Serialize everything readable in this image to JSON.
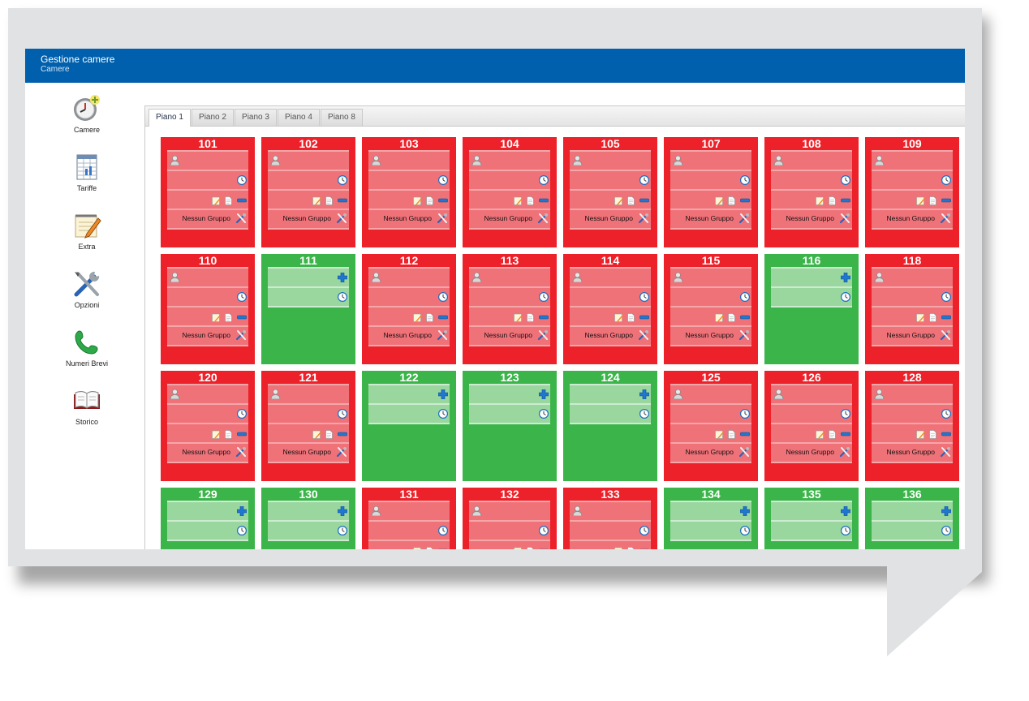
{
  "header": {
    "title": "Gestione camere",
    "subtitle": "Camere"
  },
  "sidebar": {
    "items": [
      {
        "label": "Camere",
        "icon": "clock-add-icon"
      },
      {
        "label": "Tariffe",
        "icon": "spreadsheet-icon"
      },
      {
        "label": "Extra",
        "icon": "notepad-pencil-icon"
      },
      {
        "label": "Opzioni",
        "icon": "tools-icon"
      },
      {
        "label": "Numeri Brevi",
        "icon": "phone-icon"
      },
      {
        "label": "Storico",
        "icon": "book-icon"
      }
    ]
  },
  "tabs": [
    {
      "label": "Piano 1",
      "active": true
    },
    {
      "label": "Piano 2",
      "active": false
    },
    {
      "label": "Piano 3",
      "active": false
    },
    {
      "label": "Piano 4",
      "active": false
    },
    {
      "label": "Piano 8",
      "active": false
    }
  ],
  "colors": {
    "occupied": "#ec2129",
    "free": "#3bb54a",
    "header": "#0060ad"
  },
  "group_label": "Nessun Gruppo",
  "rooms": [
    {
      "number": "101",
      "status": "occupied"
    },
    {
      "number": "102",
      "status": "occupied"
    },
    {
      "number": "103",
      "status": "occupied"
    },
    {
      "number": "104",
      "status": "occupied"
    },
    {
      "number": "105",
      "status": "occupied"
    },
    {
      "number": "107",
      "status": "occupied"
    },
    {
      "number": "108",
      "status": "occupied"
    },
    {
      "number": "109",
      "status": "occupied"
    },
    {
      "number": "110",
      "status": "occupied"
    },
    {
      "number": "111",
      "status": "free"
    },
    {
      "number": "112",
      "status": "occupied"
    },
    {
      "number": "113",
      "status": "occupied"
    },
    {
      "number": "114",
      "status": "occupied"
    },
    {
      "number": "115",
      "status": "occupied"
    },
    {
      "number": "116",
      "status": "free"
    },
    {
      "number": "118",
      "status": "occupied"
    },
    {
      "number": "120",
      "status": "occupied"
    },
    {
      "number": "121",
      "status": "occupied"
    },
    {
      "number": "122",
      "status": "free"
    },
    {
      "number": "123",
      "status": "free"
    },
    {
      "number": "124",
      "status": "free"
    },
    {
      "number": "125",
      "status": "occupied"
    },
    {
      "number": "126",
      "status": "occupied"
    },
    {
      "number": "128",
      "status": "occupied"
    },
    {
      "number": "129",
      "status": "free"
    },
    {
      "number": "130",
      "status": "free"
    },
    {
      "number": "131",
      "status": "occupied"
    },
    {
      "number": "132",
      "status": "occupied"
    },
    {
      "number": "133",
      "status": "occupied"
    },
    {
      "number": "134",
      "status": "free"
    },
    {
      "number": "135",
      "status": "free"
    },
    {
      "number": "136",
      "status": "free"
    }
  ]
}
